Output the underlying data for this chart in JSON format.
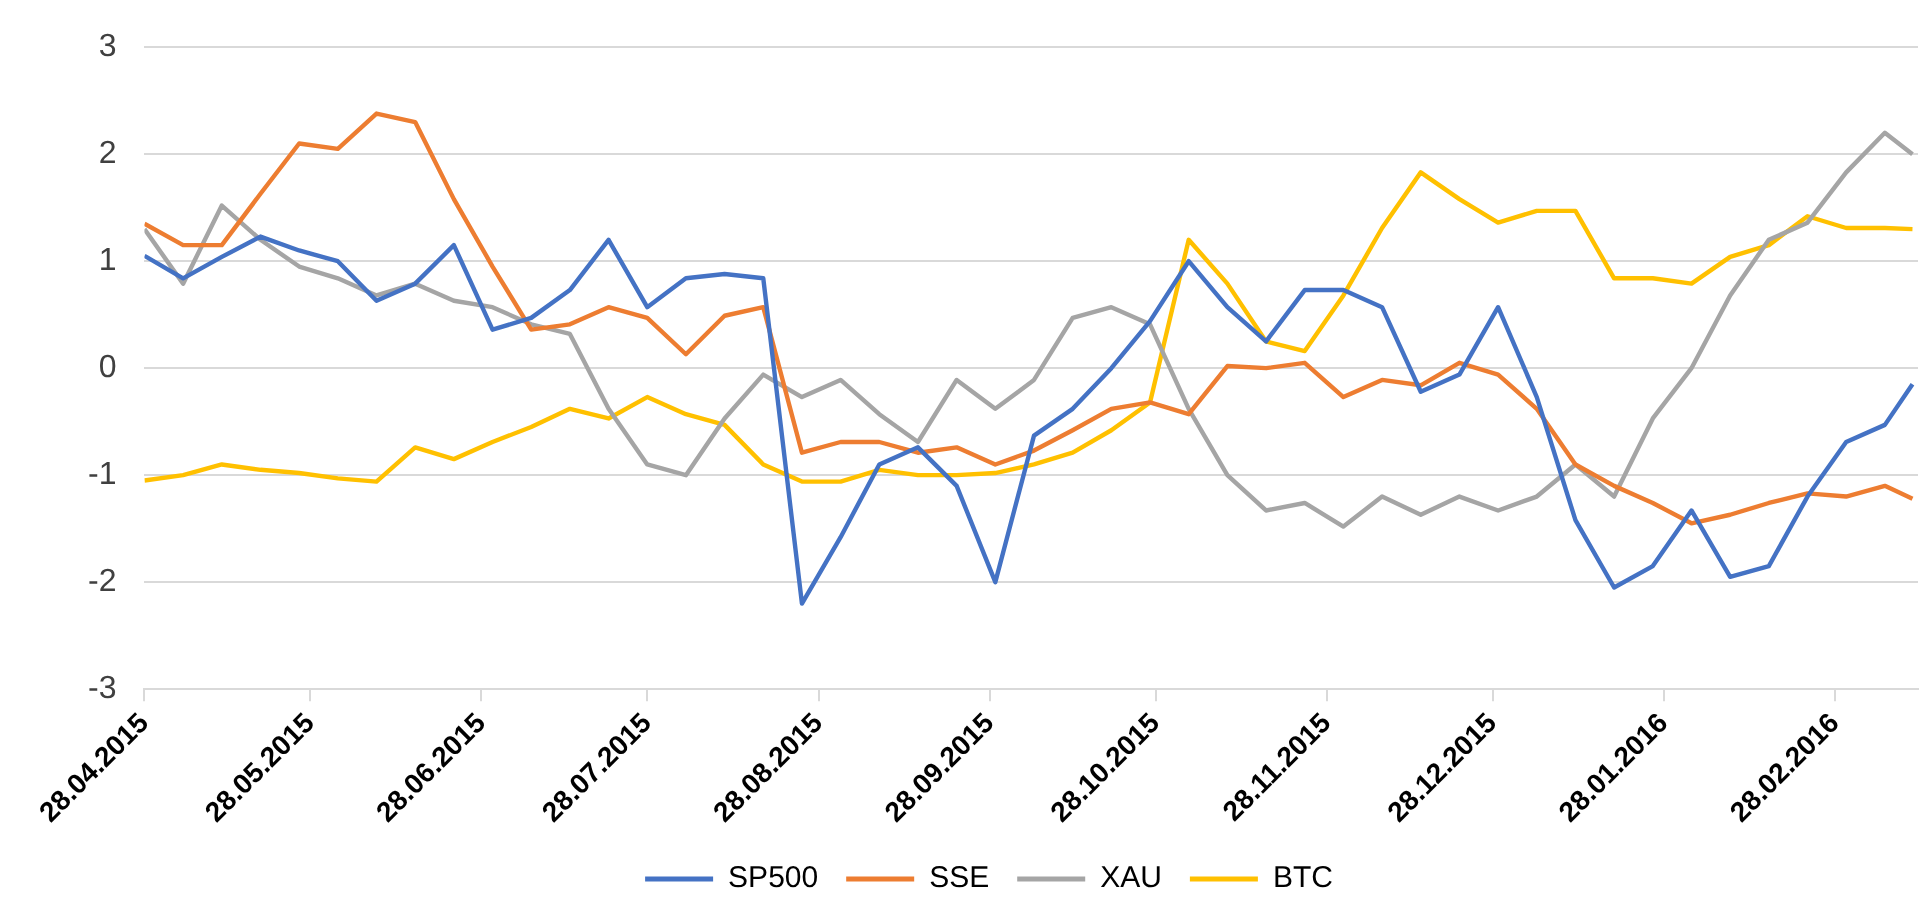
{
  "chart_data": {
    "type": "line",
    "x": [
      "2015-04-28",
      "2015-05-05",
      "2015-05-12",
      "2015-05-19",
      "2015-05-26",
      "2015-06-02",
      "2015-06-09",
      "2015-06-16",
      "2015-06-23",
      "2015-06-30",
      "2015-07-07",
      "2015-07-14",
      "2015-07-21",
      "2015-07-28",
      "2015-08-04",
      "2015-08-11",
      "2015-08-18",
      "2015-08-25",
      "2015-09-01",
      "2015-09-08",
      "2015-09-15",
      "2015-09-22",
      "2015-09-29",
      "2015-10-06",
      "2015-10-13",
      "2015-10-20",
      "2015-10-27",
      "2015-11-03",
      "2015-11-10",
      "2015-11-17",
      "2015-11-24",
      "2015-12-01",
      "2015-12-08",
      "2015-12-15",
      "2015-12-22",
      "2015-12-29",
      "2016-01-05",
      "2016-01-12",
      "2016-01-19",
      "2016-01-26",
      "2016-02-02",
      "2016-02-09",
      "2016-02-16",
      "2016-02-23",
      "2016-03-01",
      "2016-03-08",
      "2016-03-13"
    ],
    "series": [
      {
        "name": "SP500",
        "color": "#4472c4",
        "values": [
          1.05,
          0.84,
          1.04,
          1.23,
          1.1,
          1.0,
          0.63,
          0.79,
          1.15,
          0.36,
          0.47,
          0.73,
          1.2,
          0.57,
          0.84,
          0.88,
          0.84,
          -2.2,
          -1.58,
          -0.9,
          -0.74,
          -1.1,
          -2.0,
          -0.63,
          -0.38,
          0,
          0.44,
          1.0,
          0.57,
          0.25,
          0.73,
          0.73,
          0.57,
          -0.22,
          -0.06,
          0.57,
          -0.27,
          -1.42,
          -2.05,
          -1.85,
          -1.33,
          -1.95,
          -1.85,
          -1.2,
          -0.69,
          -0.53,
          -0.15
        ]
      },
      {
        "name": "SSE",
        "color": "#ed7d31",
        "values": [
          1.35,
          1.15,
          1.15,
          1.63,
          2.1,
          2.05,
          2.38,
          2.3,
          1.58,
          0.95,
          0.36,
          0.41,
          0.57,
          0.47,
          0.13,
          0.49,
          0.57,
          -0.79,
          -0.69,
          -0.69,
          -0.79,
          -0.74,
          -0.9,
          -0.77,
          -0.58,
          -0.38,
          -0.32,
          -0.43,
          0.02,
          0,
          0.05,
          -0.27,
          -0.11,
          -0.16,
          0.05,
          -0.06,
          -0.38,
          -0.9,
          -1.1,
          -1.26,
          -1.45,
          -1.37,
          -1.26,
          -1.17,
          -1.2,
          -1.1,
          -1.22
        ]
      },
      {
        "name": "XAU",
        "color": "#a5a5a5",
        "values": [
          1.3,
          0.79,
          1.52,
          1.2,
          0.95,
          0.84,
          0.68,
          0.79,
          0.63,
          0.57,
          0.41,
          0.32,
          -0.38,
          -0.9,
          -1.0,
          -0.47,
          -0.06,
          -0.27,
          -0.11,
          -0.43,
          -0.69,
          -0.11,
          -0.38,
          -0.11,
          0.47,
          0.57,
          0.41,
          -0.38,
          -1.0,
          -1.33,
          -1.26,
          -1.48,
          -1.2,
          -1.37,
          -1.2,
          -1.33,
          -1.2,
          -0.9,
          -1.2,
          -0.47,
          0,
          0.68,
          1.2,
          1.36,
          1.83,
          2.2,
          2.0
        ]
      },
      {
        "name": "BTC",
        "color": "#ffc000",
        "values": [
          -1.05,
          -1.0,
          -0.9,
          -0.95,
          -0.98,
          -1.03,
          -1.06,
          -0.74,
          -0.85,
          -0.69,
          -0.55,
          -0.38,
          -0.47,
          -0.27,
          -0.43,
          -0.53,
          -0.9,
          -1.06,
          -1.06,
          -0.95,
          -1.0,
          -1.0,
          -0.98,
          -0.9,
          -0.79,
          -0.58,
          -0.32,
          1.2,
          0.79,
          0.25,
          0.16,
          0.68,
          1.31,
          1.83,
          1.58,
          1.36,
          1.47,
          1.47,
          0.84,
          0.84,
          0.79,
          1.04,
          1.15,
          1.42,
          1.31,
          1.31,
          1.3
        ]
      }
    ],
    "xlim": [
      "2015-04-28",
      "2016-03-14"
    ],
    "xticks": [
      {
        "value": "2015-04-28",
        "label": "28.04.2015"
      },
      {
        "value": "2015-05-28",
        "label": "28.05.2015"
      },
      {
        "value": "2015-06-28",
        "label": "28.06.2015"
      },
      {
        "value": "2015-07-28",
        "label": "28.07.2015"
      },
      {
        "value": "2015-08-28",
        "label": "28.08.2015"
      },
      {
        "value": "2015-09-28",
        "label": "28.09.2015"
      },
      {
        "value": "2015-10-28",
        "label": "28.10.2015"
      },
      {
        "value": "2015-11-28",
        "label": "28.11.2015"
      },
      {
        "value": "2015-12-28",
        "label": "28.12.2015"
      },
      {
        "value": "2016-01-28",
        "label": "28.01.2016"
      },
      {
        "value": "2016-02-28",
        "label": "28.02.2016"
      }
    ],
    "ylim": [
      -3,
      3
    ],
    "yticks": [
      -3,
      -2,
      -1,
      0,
      1,
      2,
      3
    ],
    "grid": "y",
    "legend": "bottom",
    "marker": "none",
    "line_style": "solid"
  }
}
